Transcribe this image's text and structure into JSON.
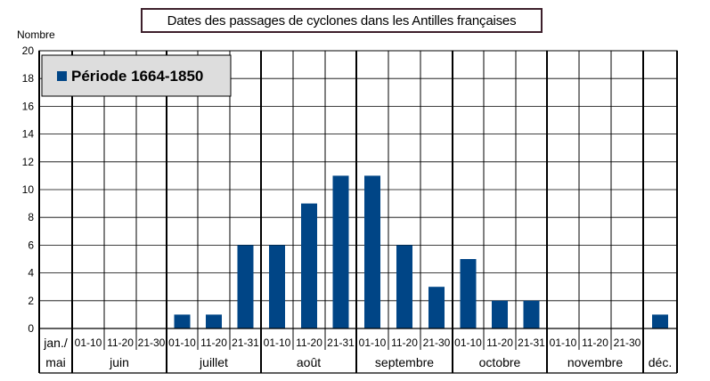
{
  "chart_data": {
    "type": "bar",
    "title": "Dates des passages de cyclones dans les Antilles françaises",
    "ylabel": "Nombre",
    "xlabel": "",
    "ylim": [
      0,
      20
    ],
    "yticks": [
      0,
      2,
      4,
      6,
      8,
      10,
      12,
      14,
      16,
      18,
      20
    ],
    "grid": true,
    "legend_position": "top-left",
    "colors": {
      "bar": "#004586",
      "legend_bg": "#dddddd"
    },
    "series": [
      {
        "name": "Période 1664-1850",
        "values": [
          0,
          0,
          0,
          0,
          1,
          1,
          6,
          6,
          9,
          11,
          11,
          6,
          3,
          5,
          2,
          2,
          0,
          0,
          0,
          1
        ]
      }
    ],
    "categories": [
      "jan./mai",
      "juin 01-10",
      "juin 11-20",
      "juin 21-30",
      "juillet 01-10",
      "juillet 11-20",
      "juillet 21-31",
      "août 01-10",
      "août 11-20",
      "août 21-31",
      "septembre 01-10",
      "septembre 11-20",
      "septembre 21-30",
      "octobre 01-10",
      "octobre 11-20",
      "octobre 21-31",
      "novembre 01-10",
      "novembre 11-20",
      "novembre 21-30",
      "déc."
    ],
    "decade_labels": [
      "",
      "01-10",
      "11-20",
      "21-30",
      "01-10",
      "11-20",
      "21-31",
      "01-10",
      "11-20",
      "21-31",
      "01-10",
      "11-20",
      "21-30",
      "01-10",
      "11-20",
      "21-31",
      "01-10",
      "11-20",
      "21-30",
      ""
    ],
    "month_groups": [
      {
        "label_lines": [
          "jan./",
          "mai"
        ]
      },
      {
        "label_lines": [
          "juin"
        ]
      },
      {
        "label_lines": [
          "juillet"
        ]
      },
      {
        "label_lines": [
          "août"
        ]
      },
      {
        "label_lines": [
          "septembre"
        ]
      },
      {
        "label_lines": [
          "octobre"
        ]
      },
      {
        "label_lines": [
          "novembre"
        ]
      },
      {
        "label_lines": [
          "déc."
        ]
      }
    ]
  }
}
